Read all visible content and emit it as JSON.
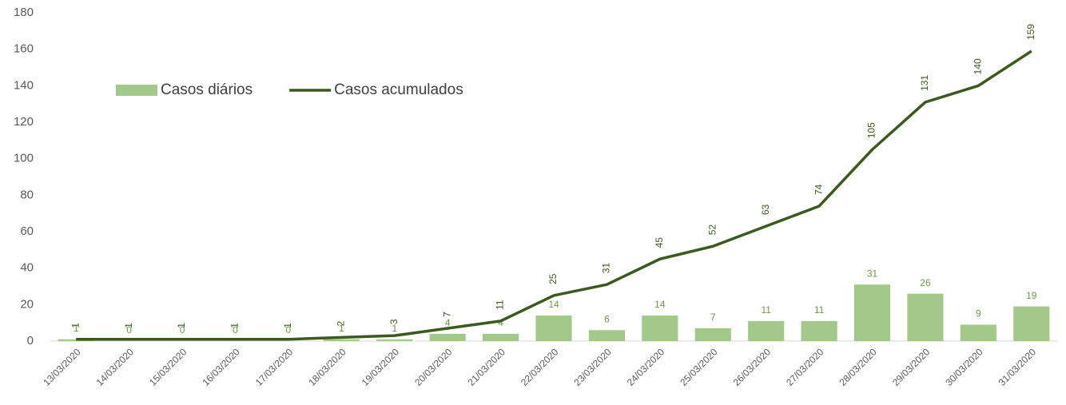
{
  "chart_data": {
    "type": "combo",
    "categories": [
      "13/03/2020",
      "14/03/2020",
      "15/03/2020",
      "16/03/2020",
      "17/03/2020",
      "18/03/2020",
      "19/03/2020",
      "20/03/2020",
      "21/03/2020",
      "22/03/2020",
      "23/03/2020",
      "24/03/2020",
      "25/03/2020",
      "26/03/2020",
      "27/03/2020",
      "28/03/2020",
      "29/03/2020",
      "30/03/2020",
      "31/03/2020"
    ],
    "series": [
      {
        "name": "Casos diários",
        "type": "bar",
        "color": "#a2c98a",
        "values": [
          1,
          0,
          0,
          0,
          0,
          1,
          1,
          4,
          4,
          14,
          6,
          14,
          7,
          11,
          11,
          31,
          26,
          9,
          19
        ]
      },
      {
        "name": "Casos acumulados",
        "type": "line",
        "color": "#3b5a1e",
        "values": [
          1,
          1,
          1,
          1,
          1,
          2,
          3,
          7,
          11,
          25,
          31,
          45,
          52,
          63,
          74,
          105,
          131,
          140,
          159
        ]
      }
    ],
    "ylim": [
      0,
      180
    ],
    "yticks": [
      0,
      20,
      40,
      60,
      80,
      100,
      120,
      140,
      160,
      180
    ],
    "grid": false,
    "legend": "top-left"
  }
}
